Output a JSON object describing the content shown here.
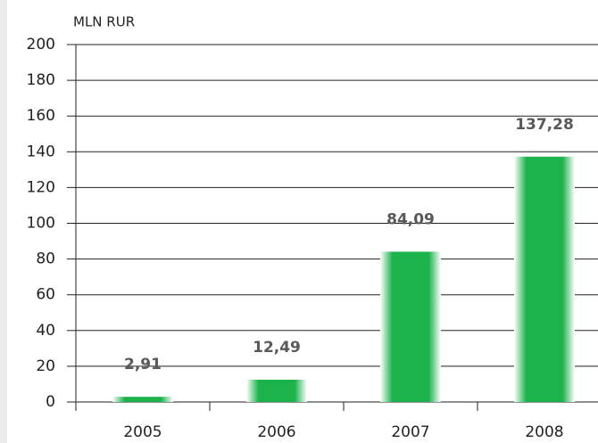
{
  "chart_data": {
    "type": "bar",
    "y_axis_label": "MLN RUR",
    "categories": [
      "2005",
      "2006",
      "2007",
      "2008"
    ],
    "values": [
      2.91,
      12.49,
      84.09,
      137.28
    ],
    "value_labels": [
      "2,91",
      "12,49",
      "84,09",
      "137,28"
    ],
    "color": "#1db34c",
    "ylim": [
      0,
      200
    ],
    "yticks": [
      0,
      20,
      40,
      60,
      80,
      100,
      120,
      140,
      160,
      180,
      200
    ],
    "grid": true
  }
}
